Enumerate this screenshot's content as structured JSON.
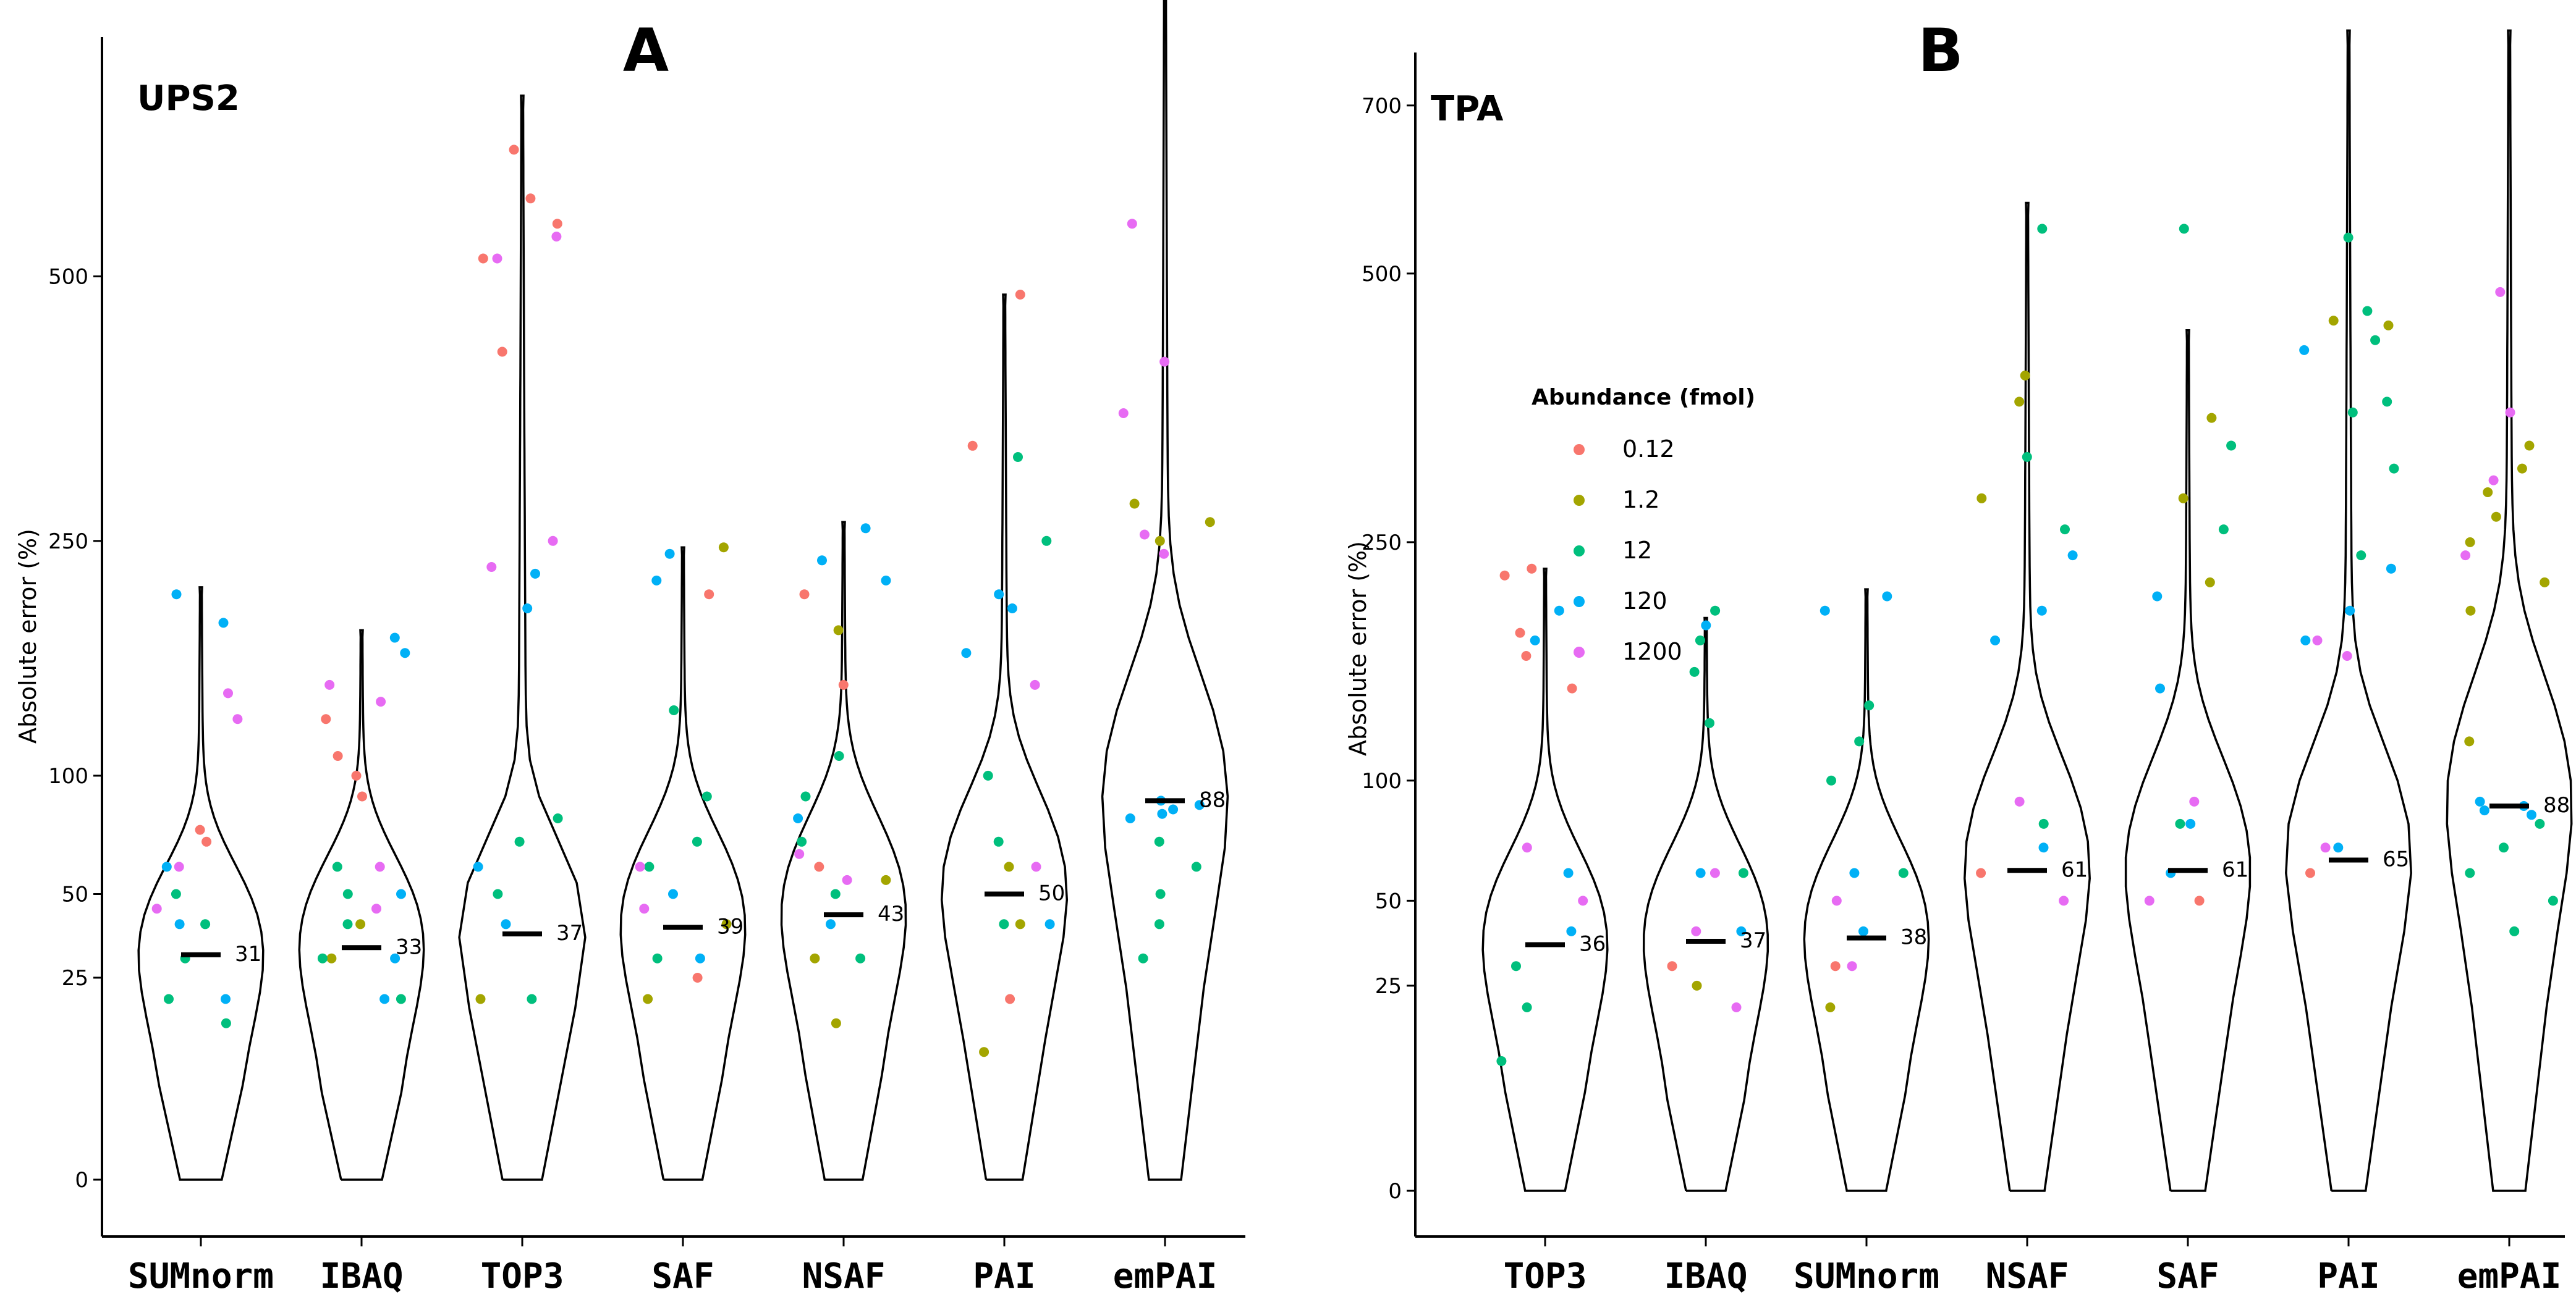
{
  "chart_data": [
    {
      "panel": "A",
      "title": "UPS2",
      "type": "scatter",
      "subtype": "violin-jitter",
      "ylabel": "Absolute error (%)",
      "xlabel": "",
      "y_ticks": [
        {
          "value": 0,
          "label": "0"
        },
        {
          "value": 25,
          "label": "25"
        },
        {
          "value": 50,
          "label": "50"
        },
        {
          "value": 100,
          "label": "100"
        },
        {
          "value": 250,
          "label": "250"
        },
        {
          "value": 500,
          "label": "500"
        }
      ],
      "y_transform": "sqrt",
      "ylim": [
        0,
        800
      ],
      "categories": [
        "SUMnorm",
        "IBAQ",
        "TOP3",
        "SAF",
        "NSAF",
        "PAI",
        "emPAI"
      ],
      "medians": [
        31,
        33,
        37,
        39,
        43,
        50,
        88
      ],
      "maxima": [
        215,
        185,
        720,
        245,
        265,
        480,
        900
      ],
      "series": [
        {
          "name": "0.12",
          "points": [
            [
              0,
              75
            ],
            [
              0,
              70
            ],
            [
              1,
              130
            ],
            [
              1,
              110
            ],
            [
              1,
              100
            ],
            [
              1,
              90
            ],
            [
              2,
              520
            ],
            [
              2,
              560
            ],
            [
              2,
              590
            ],
            [
              2,
              650
            ],
            [
              2,
              420
            ],
            [
              3,
              210
            ],
            [
              3,
              25
            ],
            [
              4,
              210
            ],
            [
              4,
              150
            ],
            [
              4,
              60
            ],
            [
              5,
              480
            ],
            [
              5,
              330
            ],
            [
              5,
              20
            ]
          ]
        },
        {
          "name": "1.2",
          "points": [
            [
              1,
              40
            ],
            [
              1,
              30
            ],
            [
              2,
              20
            ],
            [
              3,
              245
            ],
            [
              3,
              40
            ],
            [
              3,
              20
            ],
            [
              4,
              185
            ],
            [
              4,
              55
            ],
            [
              4,
              30
            ],
            [
              4,
              15
            ],
            [
              5,
              60
            ],
            [
              5,
              40
            ],
            [
              5,
              10
            ],
            [
              6,
              280
            ],
            [
              6,
              265
            ],
            [
              6,
              250
            ]
          ]
        },
        {
          "name": "12",
          "points": [
            [
              0,
              50
            ],
            [
              0,
              40
            ],
            [
              0,
              30
            ],
            [
              0,
              20
            ],
            [
              0,
              15
            ],
            [
              1,
              50
            ],
            [
              1,
              40
            ],
            [
              1,
              30
            ],
            [
              1,
              20
            ],
            [
              1,
              60
            ],
            [
              2,
              80
            ],
            [
              2,
              70
            ],
            [
              2,
              50
            ],
            [
              2,
              20
            ],
            [
              3,
              135
            ],
            [
              3,
              90
            ],
            [
              3,
              70
            ],
            [
              3,
              60
            ],
            [
              3,
              30
            ],
            [
              4,
              110
            ],
            [
              4,
              90
            ],
            [
              4,
              70
            ],
            [
              4,
              50
            ],
            [
              4,
              30
            ],
            [
              5,
              320
            ],
            [
              5,
              250
            ],
            [
              5,
              100
            ],
            [
              5,
              70
            ],
            [
              5,
              40
            ],
            [
              6,
              70
            ],
            [
              6,
              60
            ],
            [
              6,
              50
            ],
            [
              6,
              40
            ],
            [
              6,
              30
            ]
          ]
        },
        {
          "name": "120",
          "points": [
            [
              0,
              210
            ],
            [
              0,
              190
            ],
            [
              0,
              60
            ],
            [
              0,
              40
            ],
            [
              0,
              20
            ],
            [
              1,
              180
            ],
            [
              1,
              170
            ],
            [
              1,
              50
            ],
            [
              1,
              30
            ],
            [
              1,
              20
            ],
            [
              2,
              225
            ],
            [
              2,
              200
            ],
            [
              2,
              60
            ],
            [
              2,
              40
            ],
            [
              3,
              240
            ],
            [
              3,
              220
            ],
            [
              3,
              50
            ],
            [
              3,
              30
            ],
            [
              4,
              260
            ],
            [
              4,
              235
            ],
            [
              4,
              220
            ],
            [
              4,
              80
            ],
            [
              4,
              40
            ],
            [
              5,
              200
            ],
            [
              5,
              210
            ],
            [
              5,
              170
            ],
            [
              5,
              40
            ],
            [
              6,
              88
            ],
            [
              6,
              86
            ],
            [
              6,
              84
            ],
            [
              6,
              82
            ],
            [
              6,
              80
            ]
          ]
        },
        {
          "name": "1200",
          "points": [
            [
              0,
              145
            ],
            [
              0,
              130
            ],
            [
              0,
              60
            ],
            [
              0,
              45
            ],
            [
              1,
              150
            ],
            [
              1,
              140
            ],
            [
              1,
              60
            ],
            [
              1,
              45
            ],
            [
              2,
              545
            ],
            [
              2,
              520
            ],
            [
              2,
              250
            ],
            [
              2,
              230
            ],
            [
              3,
              60
            ],
            [
              3,
              45
            ],
            [
              4,
              65
            ],
            [
              4,
              55
            ],
            [
              5,
              150
            ],
            [
              5,
              60
            ],
            [
              6,
              560
            ],
            [
              6,
              410
            ],
            [
              6,
              360
            ],
            [
              6,
              255
            ],
            [
              6,
              240
            ]
          ]
        }
      ]
    },
    {
      "panel": "B",
      "title": "TPA",
      "type": "scatter",
      "subtype": "violin-jitter",
      "ylabel": "Absolute error (%)",
      "xlabel": "",
      "y_ticks": [
        {
          "value": 0,
          "label": "0"
        },
        {
          "value": 25,
          "label": "25"
        },
        {
          "value": 50,
          "label": "50"
        },
        {
          "value": 100,
          "label": "100"
        },
        {
          "value": 250,
          "label": "250"
        },
        {
          "value": 500,
          "label": "500"
        },
        {
          "value": 700,
          "label": "700"
        }
      ],
      "y_transform": "sqrt",
      "ylim": [
        0,
        770
      ],
      "categories": [
        "TOP3",
        "IBAQ",
        "SUMnorm",
        "NSAF",
        "SAF",
        "PAI",
        "emPAI"
      ],
      "medians": [
        36,
        37,
        38,
        61,
        61,
        65,
        88
      ],
      "maxima": [
        230,
        195,
        215,
        580,
        440,
        800,
        800
      ],
      "series": [
        {
          "name": "0.12",
          "points": [
            [
              0,
              225
            ],
            [
              0,
              230
            ],
            [
              0,
              185
            ],
            [
              0,
              170
            ],
            [
              0,
              150
            ],
            [
              1,
              30
            ],
            [
              2,
              30
            ],
            [
              3,
              60
            ],
            [
              4,
              50
            ],
            [
              5,
              60
            ]
          ]
        },
        {
          "name": "1.2",
          "points": [
            [
              1,
              25
            ],
            [
              2,
              20
            ],
            [
              3,
              395
            ],
            [
              3,
              370
            ],
            [
              3,
              285
            ],
            [
              4,
              355
            ],
            [
              4,
              285
            ],
            [
              4,
              220
            ],
            [
              5,
              450
            ],
            [
              5,
              445
            ],
            [
              6,
              330
            ],
            [
              6,
              310
            ],
            [
              6,
              290
            ],
            [
              6,
              270
            ],
            [
              6,
              250
            ],
            [
              6,
              220
            ],
            [
              6,
              200
            ],
            [
              6,
              120
            ]
          ]
        },
        {
          "name": "12",
          "points": [
            [
              0,
              30
            ],
            [
              0,
              20
            ],
            [
              0,
              10
            ],
            [
              1,
              200
            ],
            [
              1,
              180
            ],
            [
              1,
              160
            ],
            [
              1,
              130
            ],
            [
              1,
              60
            ],
            [
              2,
              140
            ],
            [
              2,
              120
            ],
            [
              2,
              100
            ],
            [
              2,
              60
            ],
            [
              3,
              550
            ],
            [
              3,
              320
            ],
            [
              3,
              260
            ],
            [
              3,
              80
            ],
            [
              4,
              550
            ],
            [
              4,
              330
            ],
            [
              4,
              260
            ],
            [
              4,
              80
            ],
            [
              5,
              540
            ],
            [
              5,
              460
            ],
            [
              5,
              430
            ],
            [
              5,
              370
            ],
            [
              5,
              360
            ],
            [
              5,
              310
            ],
            [
              5,
              240
            ],
            [
              6,
              80
            ],
            [
              6,
              70
            ],
            [
              6,
              60
            ],
            [
              6,
              50
            ],
            [
              6,
              40
            ]
          ]
        },
        {
          "name": "120",
          "points": [
            [
              0,
              200
            ],
            [
              0,
              180
            ],
            [
              0,
              60
            ],
            [
              0,
              40
            ],
            [
              1,
              190
            ],
            [
              1,
              60
            ],
            [
              1,
              40
            ],
            [
              2,
              210
            ],
            [
              2,
              200
            ],
            [
              2,
              60
            ],
            [
              2,
              40
            ],
            [
              3,
              240
            ],
            [
              3,
              200
            ],
            [
              3,
              180
            ],
            [
              3,
              70
            ],
            [
              4,
              210
            ],
            [
              4,
              150
            ],
            [
              4,
              80
            ],
            [
              4,
              60
            ],
            [
              5,
              420
            ],
            [
              5,
              230
            ],
            [
              5,
              200
            ],
            [
              5,
              180
            ],
            [
              5,
              70
            ],
            [
              6,
              90
            ],
            [
              6,
              88
            ],
            [
              6,
              86
            ],
            [
              6,
              84
            ]
          ]
        },
        {
          "name": "1200",
          "points": [
            [
              0,
              70
            ],
            [
              0,
              50
            ],
            [
              1,
              60
            ],
            [
              1,
              40
            ],
            [
              1,
              20
            ],
            [
              2,
              50
            ],
            [
              2,
              30
            ],
            [
              3,
              90
            ],
            [
              3,
              50
            ],
            [
              4,
              90
            ],
            [
              4,
              50
            ],
            [
              5,
              180
            ],
            [
              5,
              170
            ],
            [
              5,
              70
            ],
            [
              6,
              480
            ],
            [
              6,
              360
            ],
            [
              6,
              300
            ],
            [
              6,
              240
            ]
          ]
        }
      ]
    }
  ],
  "legend": {
    "title": "Abundance (fmol)",
    "items": [
      {
        "label": "0.12",
        "color": "#F8766D"
      },
      {
        "label": "1.2",
        "color": "#A3A500"
      },
      {
        "label": "12",
        "color": "#00BF7D"
      },
      {
        "label": "120",
        "color": "#00B0F6"
      },
      {
        "label": "1200",
        "color": "#E76BF3"
      }
    ]
  }
}
